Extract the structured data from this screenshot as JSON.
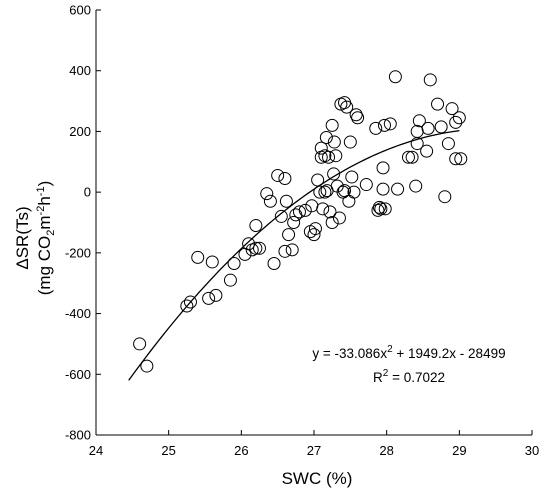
{
  "chart_data": {
    "type": "scatter",
    "xlabel": "SWC (%)",
    "ylabel_line1": "ΔSR(Ts)",
    "ylabel_line2": {
      "t1": "(mg CO",
      "s1": "2",
      "t2": "m",
      "s2": "-2",
      "t3": "h",
      "s3": "-1",
      "t4": ")"
    },
    "xlim": [
      24,
      30
    ],
    "ylim": [
      -800,
      600
    ],
    "xticks": [
      24,
      25,
      26,
      27,
      28,
      29,
      30
    ],
    "yticks": [
      -800,
      -600,
      -400,
      -200,
      0,
      200,
      400,
      600
    ],
    "grid": false,
    "marker": "open-circle",
    "equation": {
      "p1": "y = -33.086x",
      "sup": "2",
      "p2": " + 1949.2x - 28499"
    },
    "r2": {
      "p1": "R",
      "sup": "2",
      "p2": " = 0.7022"
    },
    "fit": {
      "a": -33.086,
      "b": 1949.2,
      "c": -28499,
      "x_range": [
        24.45,
        29.0
      ]
    },
    "points": [
      [
        24.6,
        -500
      ],
      [
        24.7,
        -573
      ],
      [
        25.25,
        -375
      ],
      [
        25.3,
        -362
      ],
      [
        25.4,
        -215
      ],
      [
        25.55,
        -350
      ],
      [
        25.6,
        -230
      ],
      [
        25.65,
        -340
      ],
      [
        25.85,
        -290
      ],
      [
        25.9,
        -235
      ],
      [
        26.05,
        -205
      ],
      [
        26.1,
        -170
      ],
      [
        26.15,
        -190
      ],
      [
        26.2,
        -185
      ],
      [
        26.2,
        -110
      ],
      [
        26.25,
        -185
      ],
      [
        26.35,
        -5
      ],
      [
        26.4,
        -30
      ],
      [
        26.45,
        -235
      ],
      [
        26.5,
        55
      ],
      [
        26.55,
        -80
      ],
      [
        26.6,
        -195
      ],
      [
        26.6,
        45
      ],
      [
        26.62,
        -30
      ],
      [
        26.65,
        -140
      ],
      [
        26.7,
        -190
      ],
      [
        26.72,
        -100
      ],
      [
        26.75,
        -75
      ],
      [
        26.8,
        -65
      ],
      [
        26.88,
        -60
      ],
      [
        26.95,
        -130
      ],
      [
        26.97,
        -45
      ],
      [
        27.0,
        -140
      ],
      [
        27.02,
        -120
      ],
      [
        27.05,
        40
      ],
      [
        27.08,
        0
      ],
      [
        27.1,
        115
      ],
      [
        27.1,
        145
      ],
      [
        27.12,
        -55
      ],
      [
        27.15,
        120
      ],
      [
        27.15,
        0
      ],
      [
        27.17,
        180
      ],
      [
        27.18,
        5
      ],
      [
        27.2,
        115
      ],
      [
        27.22,
        -65
      ],
      [
        27.25,
        -100
      ],
      [
        27.25,
        220
      ],
      [
        27.27,
        60
      ],
      [
        27.28,
        165
      ],
      [
        27.3,
        120
      ],
      [
        27.32,
        20
      ],
      [
        27.35,
        -85
      ],
      [
        27.37,
        290
      ],
      [
        27.4,
        0
      ],
      [
        27.42,
        295
      ],
      [
        27.42,
        5
      ],
      [
        27.45,
        280
      ],
      [
        27.48,
        -30
      ],
      [
        27.5,
        165
      ],
      [
        27.52,
        50
      ],
      [
        27.55,
        0
      ],
      [
        27.58,
        255
      ],
      [
        27.6,
        245
      ],
      [
        27.72,
        25
      ],
      [
        27.85,
        210
      ],
      [
        27.88,
        -60
      ],
      [
        27.9,
        -50
      ],
      [
        27.92,
        -55
      ],
      [
        27.95,
        80
      ],
      [
        27.95,
        10
      ],
      [
        27.97,
        220
      ],
      [
        27.98,
        -55
      ],
      [
        28.05,
        225
      ],
      [
        28.12,
        380
      ],
      [
        28.15,
        10
      ],
      [
        28.3,
        115
      ],
      [
        28.35,
        115
      ],
      [
        28.4,
        20
      ],
      [
        28.42,
        160
      ],
      [
        28.42,
        200
      ],
      [
        28.45,
        235
      ],
      [
        28.55,
        135
      ],
      [
        28.57,
        210
      ],
      [
        28.6,
        370
      ],
      [
        28.7,
        290
      ],
      [
        28.75,
        215
      ],
      [
        28.8,
        -15
      ],
      [
        28.85,
        160
      ],
      [
        28.9,
        275
      ],
      [
        28.95,
        230
      ],
      [
        28.95,
        110
      ],
      [
        29.0,
        245
      ],
      [
        29.02,
        110
      ]
    ]
  }
}
